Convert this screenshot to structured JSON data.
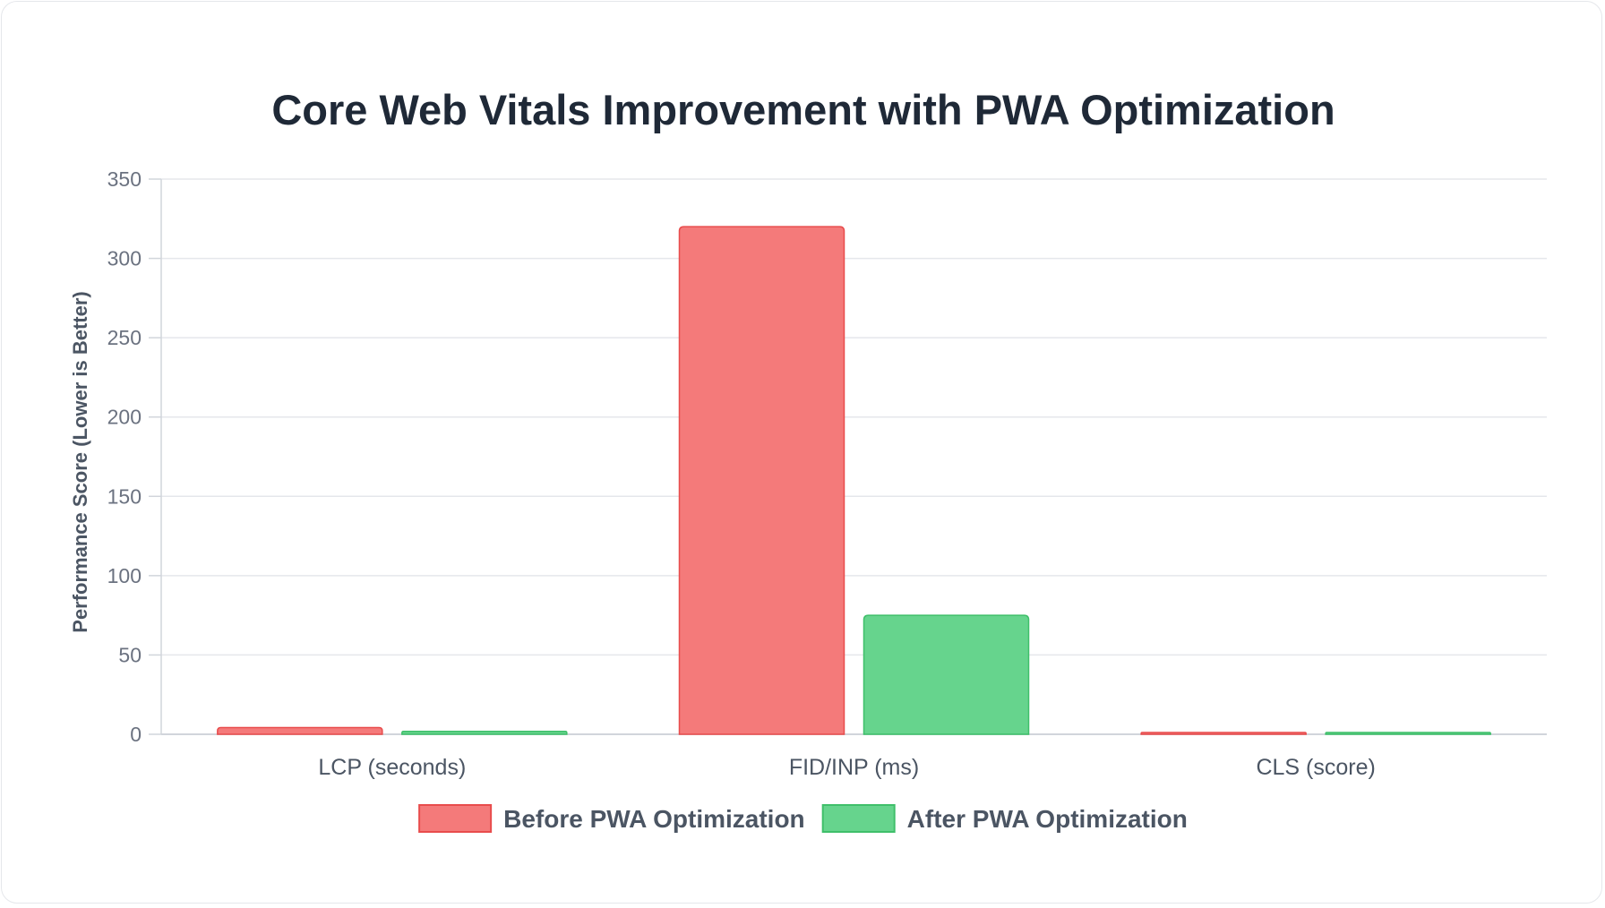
{
  "chart_data": {
    "type": "bar",
    "title": "Core Web Vitals Improvement with PWA Optimization",
    "xlabel": "",
    "ylabel": "Performance Score (Lower is Better)",
    "categories": [
      "LCP (seconds)",
      "FID/INP (ms)",
      "CLS (score)"
    ],
    "ylim": [
      0,
      350
    ],
    "yticks": [
      0,
      50,
      100,
      150,
      200,
      250,
      300,
      350
    ],
    "grid": true,
    "legend_position": "bottom",
    "series": [
      {
        "name": "Before PWA Optimization",
        "values": [
          4.2,
          320,
          0.25
        ],
        "color": "#f47a7a",
        "border_color": "#e84c4c"
      },
      {
        "name": "After PWA Optimization",
        "values": [
          1.8,
          75,
          0.08
        ],
        "color": "#66d48d",
        "border_color": "#3fbf6a"
      }
    ]
  }
}
